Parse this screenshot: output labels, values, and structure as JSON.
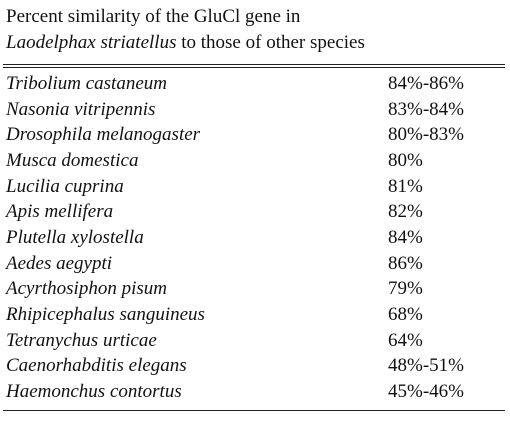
{
  "caption": {
    "line1": "Percent similarity of the GluCl gene in",
    "line2_species": "Laodelphax striatellus",
    "line2_rest": " to those of other species"
  },
  "rows": [
    {
      "species": "Tribolium castaneum",
      "similarity": "84%-86%"
    },
    {
      "species": "Nasonia vitripennis",
      "similarity": "83%-84%"
    },
    {
      "species": "Drosophila melanogaster",
      "similarity": "80%-83%"
    },
    {
      "species": "Musca domestica",
      "similarity": "80%"
    },
    {
      "species": "Lucilia cuprina",
      "similarity": "81%"
    },
    {
      "species": "Apis mellifera",
      "similarity": "82%"
    },
    {
      "species": "Plutella xylostella",
      "similarity": "84%"
    },
    {
      "species": "Aedes aegypti",
      "similarity": "86%"
    },
    {
      "species": "Acyrthosiphon pisum",
      "similarity": "79%"
    },
    {
      "species": "Rhipicephalus sanguineus",
      "similarity": "68%"
    },
    {
      "species": "Tetranychus urticae",
      "similarity": "64%"
    },
    {
      "species": "Caenorhabditis elegans",
      "similarity": "48%-51%"
    },
    {
      "species": "Haemonchus contortus",
      "similarity": "45%-46%"
    }
  ]
}
